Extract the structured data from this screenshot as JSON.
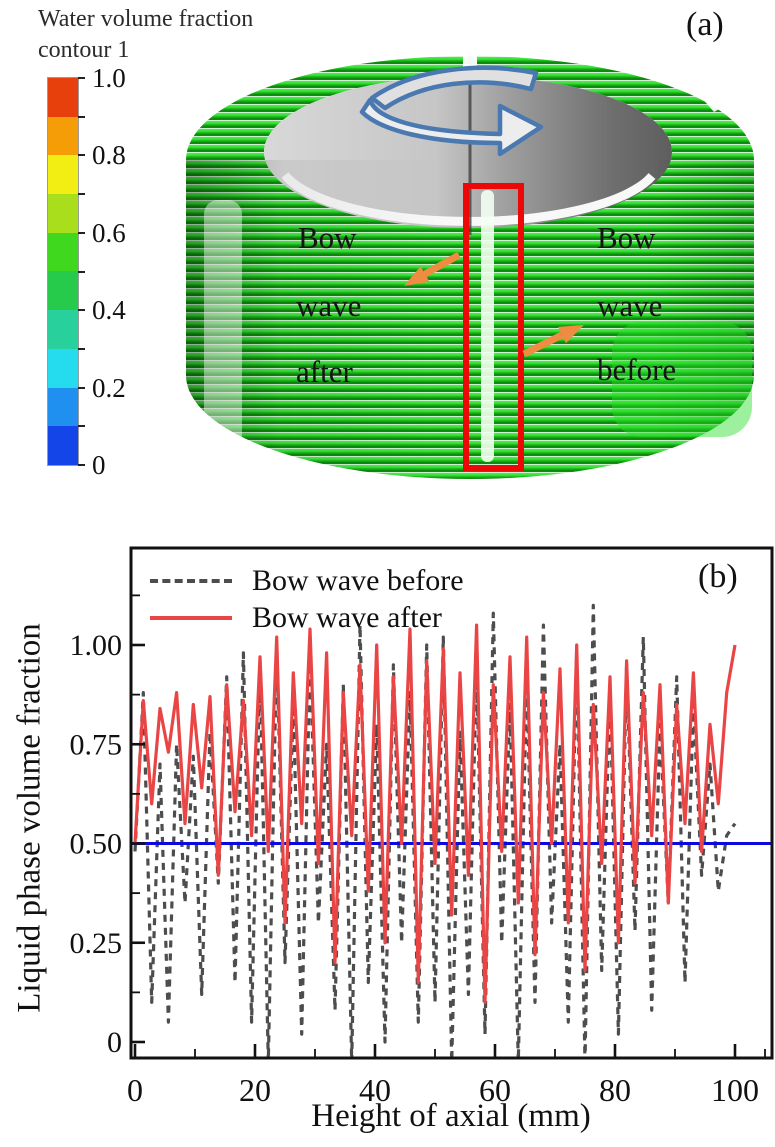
{
  "figure": {
    "panel_a_label": "(a)",
    "panel_b_label": "(b)"
  },
  "colorbar": {
    "title_line1": "Water volume fraction",
    "title_line2": "contour 1",
    "tick_labels": [
      "1.0",
      "0.8",
      "0.6",
      "0.4",
      "0.2",
      "0"
    ],
    "band_colors_top_to_bottom": [
      "#e8400c",
      "#f59d06",
      "#f2ee14",
      "#a9de1d",
      "#3fd81f",
      "#27cb4b",
      "#28d19c",
      "#25dcef",
      "#1f90ef",
      "#1345e8"
    ]
  },
  "annotations": {
    "left_words": [
      "Bow",
      "wave",
      "after"
    ],
    "right_words": [
      "Bow",
      "wave",
      "before"
    ],
    "arrow_color": "#f08c42",
    "highlight_box_color": "#ee0707",
    "rotation_arrow_stroke": "#4a78b0",
    "rotation_arrow_fill": "#e0e0e0",
    "coil_color": "#1dbf1d"
  },
  "chart_data": {
    "type": "line",
    "title": "",
    "xlabel": "Height of axial (mm)",
    "ylabel": "Liquid phase volume fraction",
    "xlim": [
      -0.7,
      106.2
    ],
    "ylim": [
      -0.04,
      1.245
    ],
    "grid": false,
    "legend_position": "top-left",
    "x_ticks": [
      0,
      20,
      40,
      60,
      80,
      100
    ],
    "x_tick_labels": [
      "0",
      "20",
      "40",
      "60",
      "80",
      "100"
    ],
    "x_minor_ticks": [
      10,
      30,
      50,
      70,
      90,
      105
    ],
    "y_ticks": [
      0,
      0.25,
      0.5,
      0.75,
      1.0
    ],
    "y_tick_labels": [
      "0",
      "0.25",
      "0.50",
      "0.75",
      "1.00"
    ],
    "y_minor_ticks": [
      0.125,
      0.375,
      0.625,
      0.875,
      1.125
    ],
    "ref_line": {
      "y": 0.5,
      "color": "#0a0ae0"
    },
    "x": [
      0,
      1.39,
      2.78,
      4.17,
      5.56,
      6.94,
      8.33,
      9.72,
      11.11,
      12.5,
      13.89,
      15.28,
      16.67,
      18.06,
      19.44,
      20.83,
      22.22,
      23.61,
      25,
      26.39,
      27.78,
      29.17,
      30.56,
      31.94,
      33.33,
      34.72,
      36.11,
      37.5,
      38.89,
      40.28,
      41.67,
      43.06,
      44.44,
      45.83,
      47.22,
      48.61,
      50,
      51.39,
      52.78,
      54.17,
      55.56,
      56.94,
      58.33,
      59.72,
      61.11,
      62.5,
      63.89,
      65.28,
      66.67,
      68.06,
      69.44,
      70.83,
      72.22,
      73.61,
      75,
      76.39,
      77.78,
      79.17,
      80.56,
      81.94,
      83.33,
      84.72,
      86.11,
      87.5,
      88.89,
      90.28,
      91.67,
      93.06,
      94.44,
      95.83,
      97.22,
      98.61,
      100
    ],
    "series": [
      {
        "name": "Bow wave before",
        "style": "dashed",
        "color": "#4d4d4d",
        "y": [
          0.48,
          0.88,
          0.1,
          0.7,
          0.05,
          0.75,
          0.35,
          0.72,
          0.12,
          0.78,
          0.4,
          0.92,
          0.15,
          0.98,
          0.05,
          0.95,
          -0.05,
          1.0,
          0.2,
          0.85,
          0.02,
          0.97,
          0.3,
          0.75,
          0.08,
          0.9,
          -0.05,
          1.05,
          0.15,
          0.8,
          0.0,
          0.95,
          0.25,
          0.88,
          0.05,
          1.0,
          0.1,
          1.02,
          -0.05,
          0.78,
          0.12,
          0.95,
          0.02,
          1.08,
          0.25,
          0.85,
          -0.05,
          0.92,
          0.1,
          1.05,
          0.3,
          0.75,
          0.05,
          0.98,
          -0.05,
          1.1,
          0.18,
          0.88,
          0.02,
          0.95,
          0.28,
          1.02,
          0.08,
          0.8,
          0.35,
          0.92,
          0.15,
          0.85,
          0.42,
          0.7,
          0.38,
          0.52,
          0.55
        ]
      },
      {
        "name": "Bow wave after",
        "style": "solid",
        "color": "#ea4545",
        "y": [
          0.5,
          0.86,
          0.6,
          0.84,
          0.73,
          0.88,
          0.55,
          0.85,
          0.64,
          0.87,
          0.42,
          0.9,
          0.58,
          0.86,
          0.52,
          0.97,
          0.48,
          1.02,
          0.3,
          0.93,
          0.55,
          1.04,
          0.45,
          0.98,
          0.2,
          0.88,
          0.52,
          0.95,
          0.38,
          1.0,
          0.25,
          0.92,
          0.5,
          1.04,
          0.15,
          0.96,
          0.45,
          0.99,
          0.32,
          0.93,
          0.42,
          1.05,
          0.1,
          0.9,
          0.48,
          0.97,
          0.35,
          1.02,
          0.22,
          0.88,
          0.5,
          0.94,
          0.3,
          1.0,
          0.18,
          0.85,
          0.45,
          0.92,
          0.25,
          0.96,
          0.4,
          0.88,
          0.52,
          0.9,
          0.35,
          0.85,
          0.55,
          0.93,
          0.48,
          0.8,
          0.6,
          0.88,
          1.0
        ]
      }
    ]
  }
}
